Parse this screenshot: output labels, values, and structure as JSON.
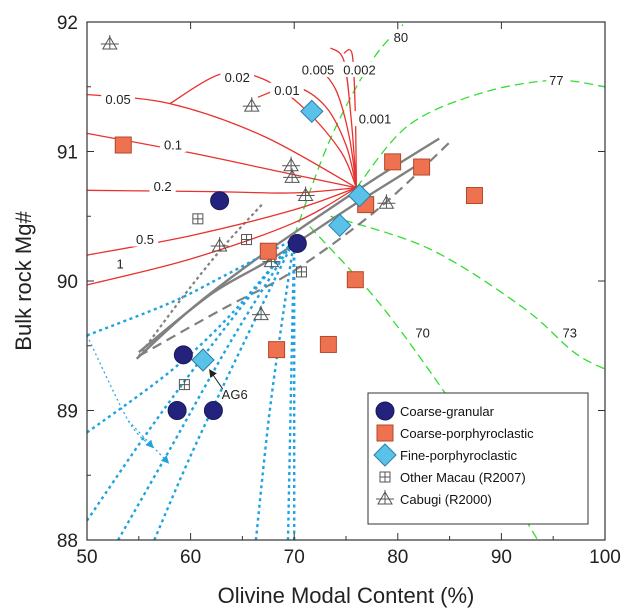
{
  "chart_data": {
    "type": "scatter",
    "xlabel": "Olivine Modal Content (%)",
    "ylabel": "Bulk rock Mg#",
    "xlim": [
      50,
      100
    ],
    "ylim": [
      88,
      92
    ],
    "x_ticks": [
      50,
      60,
      70,
      80,
      90,
      100
    ],
    "y_ticks": [
      88,
      89,
      90,
      91,
      92
    ],
    "x_tick_labels": [
      "50",
      "60",
      "70",
      "80",
      "90",
      "100"
    ],
    "y_tick_labels": [
      "88",
      "89",
      "90",
      "91",
      "92"
    ],
    "grid": false,
    "legend_position": "bottom-right",
    "series": [
      {
        "name": "Coarse-granular",
        "marker": "circle",
        "color": "#23237e",
        "points": [
          [
            62.8,
            90.62
          ],
          [
            70.3,
            90.29
          ],
          [
            59.3,
            89.43
          ],
          [
            58.7,
            89.0
          ],
          [
            62.2,
            89.0
          ]
        ]
      },
      {
        "name": "Coarse-porphyroclastic",
        "marker": "square",
        "color": "#ef7250",
        "points": [
          [
            53.5,
            91.05
          ],
          [
            79.5,
            90.92
          ],
          [
            82.3,
            90.88
          ],
          [
            87.4,
            90.66
          ],
          [
            76.9,
            90.59
          ],
          [
            67.5,
            90.23
          ],
          [
            75.9,
            90.01
          ],
          [
            68.3,
            89.47
          ],
          [
            73.3,
            89.51
          ]
        ]
      },
      {
        "name": "Fine-porphyroclastic",
        "marker": "diamond",
        "color": "#5ac2e8",
        "points": [
          [
            71.7,
            91.31
          ],
          [
            76.3,
            90.66
          ],
          [
            74.4,
            90.43
          ],
          [
            61.2,
            89.39
          ]
        ]
      },
      {
        "name": "Other Macau (R2007)",
        "marker": "boxed-plus",
        "color": "#555555",
        "points": [
          [
            60.7,
            90.48
          ],
          [
            65.4,
            90.32
          ],
          [
            59.4,
            89.2
          ],
          [
            70.7,
            90.07
          ]
        ]
      },
      {
        "name": "Cabugi (R2000)",
        "marker": "triangle-plus",
        "color": "#555555",
        "points": [
          [
            52.2,
            91.83
          ],
          [
            65.9,
            91.35
          ],
          [
            69.7,
            90.89
          ],
          [
            69.8,
            90.8
          ],
          [
            71.1,
            90.66
          ],
          [
            78.9,
            90.6
          ],
          [
            62.8,
            90.27
          ],
          [
            67.8,
            90.15
          ],
          [
            66.8,
            89.74
          ]
        ]
      }
    ],
    "melting_curves": [
      {
        "label": "0.05",
        "color": "#e8322e",
        "points": [
          [
            50,
            91.44
          ],
          [
            58,
            91.37
          ],
          [
            67,
            91.12
          ],
          [
            76,
            90.72
          ]
        ]
      },
      {
        "label": "0.02",
        "color": "#e8322e",
        "points": [
          [
            58,
            91.37
          ],
          [
            63,
            91.6
          ],
          [
            67,
            91.56
          ],
          [
            71,
            91.33
          ],
          [
            74.5,
            91.0
          ],
          [
            76,
            90.72
          ]
        ]
      },
      {
        "label": "0.01",
        "color": "#e8322e",
        "points": [
          [
            66.5,
            91.42
          ],
          [
            70,
            91.5
          ],
          [
            73,
            91.35
          ],
          [
            75,
            91.05
          ],
          [
            76,
            90.72
          ]
        ]
      },
      {
        "label": "0.005",
        "color": "#e8322e",
        "points": [
          [
            72,
            91.68
          ],
          [
            74,
            91.48
          ],
          [
            75.3,
            91.12
          ],
          [
            76,
            90.72
          ]
        ]
      },
      {
        "label": "0.002",
        "color": "#e8322e",
        "points": [
          [
            73.5,
            91.8
          ],
          [
            74.8,
            91.7
          ],
          [
            75.5,
            91.25
          ],
          [
            76,
            90.72
          ]
        ]
      },
      {
        "label": "0.001",
        "color": "#e8322e",
        "points": [
          [
            74.8,
            91.76
          ],
          [
            75.6,
            91.75
          ],
          [
            75.9,
            91.3
          ],
          [
            76,
            90.72
          ]
        ]
      },
      {
        "label": "0.1",
        "color": "#e8322e",
        "points": [
          [
            50,
            91.14
          ],
          [
            60,
            90.99
          ],
          [
            70,
            90.82
          ],
          [
            76,
            90.72
          ]
        ]
      },
      {
        "label": "0.2",
        "color": "#e8322e",
        "points": [
          [
            50,
            90.7
          ],
          [
            62,
            90.69
          ],
          [
            70,
            90.68
          ],
          [
            76,
            90.72
          ]
        ]
      },
      {
        "label": "0.5",
        "color": "#e8322e",
        "points": [
          [
            50,
            90.2
          ],
          [
            60,
            90.35
          ],
          [
            70,
            90.55
          ],
          [
            76,
            90.72
          ]
        ]
      },
      {
        "label": "1",
        "color": "#e8322e",
        "points": [
          [
            50,
            89.97
          ],
          [
            60,
            90.17
          ],
          [
            70,
            90.45
          ],
          [
            76,
            90.72
          ]
        ]
      }
    ],
    "temperature_isotherms": [
      {
        "label": "80",
        "color": "#33dd33",
        "points": [
          [
            70,
            90.35
          ],
          [
            73.5,
            91.1
          ],
          [
            77.5,
            91.7
          ],
          [
            80.5,
            91.98
          ]
        ]
      },
      {
        "label": "77",
        "color": "#33dd33",
        "points": [
          [
            76,
            90.72
          ],
          [
            81,
            91.2
          ],
          [
            88,
            91.45
          ],
          [
            95,
            91.55
          ],
          [
            100,
            91.5
          ]
        ]
      },
      {
        "label": "73",
        "color": "#33dd33",
        "points": [
          [
            73.5,
            90.5
          ],
          [
            83,
            90.25
          ],
          [
            92,
            89.8
          ],
          [
            97,
            89.45
          ],
          [
            100,
            89.32
          ]
        ]
      },
      {
        "label": "70",
        "color": "#33dd33",
        "points": [
          [
            71.5,
            90.42
          ],
          [
            78,
            89.85
          ],
          [
            84,
            89.2
          ],
          [
            89,
            88.6
          ],
          [
            93.5,
            88.0
          ]
        ]
      }
    ],
    "model_curves_grey": [
      {
        "style": "solid",
        "color": "#808080",
        "points": [
          [
            54.8,
            89.4
          ],
          [
            60,
            89.78
          ],
          [
            66,
            90.15
          ],
          [
            72,
            90.48
          ],
          [
            78,
            90.8
          ],
          [
            84,
            91.1
          ]
        ]
      },
      {
        "style": "solid",
        "color": "#808080",
        "points": [
          [
            55,
            89.45
          ],
          [
            62,
            89.9
          ],
          [
            68,
            90.18
          ],
          [
            76,
            90.6
          ],
          [
            82,
            90.9
          ]
        ]
      },
      {
        "style": "dashed",
        "color": "#808080",
        "points": [
          [
            55,
            89.42
          ],
          [
            63,
            89.78
          ],
          [
            70,
            90.08
          ],
          [
            78,
            90.55
          ],
          [
            85,
            91.07
          ]
        ]
      },
      {
        "style": "dotted",
        "color": "#808080",
        "points": [
          [
            55,
            89.42
          ],
          [
            59,
            89.85
          ],
          [
            63,
            90.25
          ],
          [
            67,
            90.6
          ]
        ]
      }
    ],
    "blue_dotted_curves": [
      {
        "color": "#1ea3e0",
        "points": [
          [
            50,
            89.58
          ],
          [
            58,
            89.83
          ],
          [
            63,
            90.03
          ],
          [
            67.5,
            90.22
          ],
          [
            70,
            90.32
          ]
        ]
      },
      {
        "color": "#1ea3e0",
        "points": [
          [
            50,
            88.83
          ],
          [
            58,
            89.3
          ],
          [
            64,
            89.75
          ],
          [
            70,
            90.32
          ]
        ]
      },
      {
        "color": "#1ea3e0",
        "points": [
          [
            50,
            88.15
          ],
          [
            56,
            88.85
          ],
          [
            62,
            89.5
          ],
          [
            70,
            90.32
          ]
        ]
      },
      {
        "color": "#1ea3e0",
        "points": [
          [
            53,
            88.0
          ],
          [
            58,
            88.7
          ],
          [
            64,
            89.55
          ],
          [
            70,
            90.32
          ]
        ]
      },
      {
        "color": "#1ea3e0",
        "points": [
          [
            56.5,
            88.0
          ],
          [
            60,
            88.65
          ],
          [
            65,
            89.5
          ],
          [
            70,
            90.32
          ]
        ]
      },
      {
        "color": "#1ea3e0",
        "points": [
          [
            66.3,
            88.0
          ],
          [
            67.8,
            89.1
          ],
          [
            70,
            90.32
          ]
        ]
      },
      {
        "color": "#1ea3e0",
        "points": [
          [
            69.4,
            88.0
          ],
          [
            69.7,
            89.2
          ],
          [
            70,
            90.32
          ]
        ]
      },
      {
        "color": "#1ea3e0",
        "points": [
          [
            70,
            88.0
          ],
          [
            70,
            90.32
          ]
        ]
      }
    ],
    "blue_arrows": [
      {
        "color": "#1ea3e0",
        "points": [
          [
            50,
            89.58
          ],
          [
            54,
            88.92
          ],
          [
            56.3,
            88.72
          ]
        ]
      },
      {
        "color": "#1ea3e0",
        "points": [
          [
            54,
            88.92
          ],
          [
            57.8,
            88.6
          ]
        ]
      }
    ],
    "annotations": [
      {
        "text": "AG6",
        "x": 63.0,
        "y": 89.12,
        "arrow_to": [
          61.6,
          89.33
        ]
      }
    ]
  },
  "legend": {
    "entries": [
      {
        "label": "Coarse-granular",
        "marker": "circle"
      },
      {
        "label": "Coarse-porphyroclastic",
        "marker": "square"
      },
      {
        "label": "Fine-porphyroclastic",
        "marker": "diamond"
      },
      {
        "label": "Other Macau (R2007)",
        "marker": "boxed-plus"
      },
      {
        "label": "Cabugi (R2000)",
        "marker": "triangle-plus"
      }
    ]
  }
}
